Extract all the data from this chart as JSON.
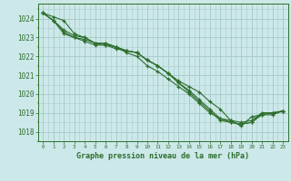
{
  "background_color": "#cce8e8",
  "grid_color": "#aacccc",
  "line_color": "#2d6e2d",
  "marker_color": "#2d6e2d",
  "xlabel": "Graphe pression niveau de la mer (hPa)",
  "xlim": [
    -0.5,
    23.5
  ],
  "ylim": [
    1017.5,
    1024.8
  ],
  "yticks": [
    1018,
    1019,
    1020,
    1021,
    1022,
    1023,
    1024
  ],
  "xticks": [
    0,
    1,
    2,
    3,
    4,
    5,
    6,
    7,
    8,
    9,
    10,
    11,
    12,
    13,
    14,
    15,
    16,
    17,
    18,
    19,
    20,
    21,
    22,
    23
  ],
  "series": [
    [
      1024.3,
      1024.1,
      1023.9,
      1023.2,
      1023.0,
      1022.7,
      1022.7,
      1022.5,
      1022.3,
      1022.2,
      1021.8,
      1021.5,
      1021.1,
      1020.7,
      1020.4,
      1020.1,
      1019.6,
      1019.2,
      1018.6,
      1018.3,
      1018.8,
      1018.9,
      1018.9,
      1019.1
    ],
    [
      1024.3,
      1023.9,
      1023.2,
      1023.0,
      1022.9,
      1022.7,
      1022.6,
      1022.5,
      1022.2,
      1022.0,
      1021.5,
      1021.2,
      1020.8,
      1020.4,
      1020.0,
      1019.5,
      1019.0,
      1018.7,
      1018.5,
      1018.4,
      1018.5,
      1019.0,
      1019.0,
      1019.1
    ],
    [
      1024.3,
      1023.9,
      1023.3,
      1023.0,
      1022.8,
      1022.6,
      1022.6,
      1022.4,
      1022.3,
      1022.2,
      1021.8,
      1021.5,
      1021.1,
      1020.6,
      1020.1,
      1019.6,
      1019.1,
      1018.6,
      1018.5,
      1018.4,
      1018.5,
      1018.9,
      1019.0,
      1019.1
    ],
    [
      1024.3,
      1023.9,
      1023.4,
      1023.1,
      1023.0,
      1022.7,
      1022.7,
      1022.5,
      1022.3,
      1022.2,
      1021.8,
      1021.5,
      1021.1,
      1020.6,
      1020.2,
      1019.7,
      1019.2,
      1018.7,
      1018.6,
      1018.5,
      1018.6,
      1019.0,
      1019.0,
      1019.1
    ]
  ],
  "xlabel_fontsize": 6.0,
  "ytick_fontsize": 5.5,
  "xtick_fontsize": 4.2
}
